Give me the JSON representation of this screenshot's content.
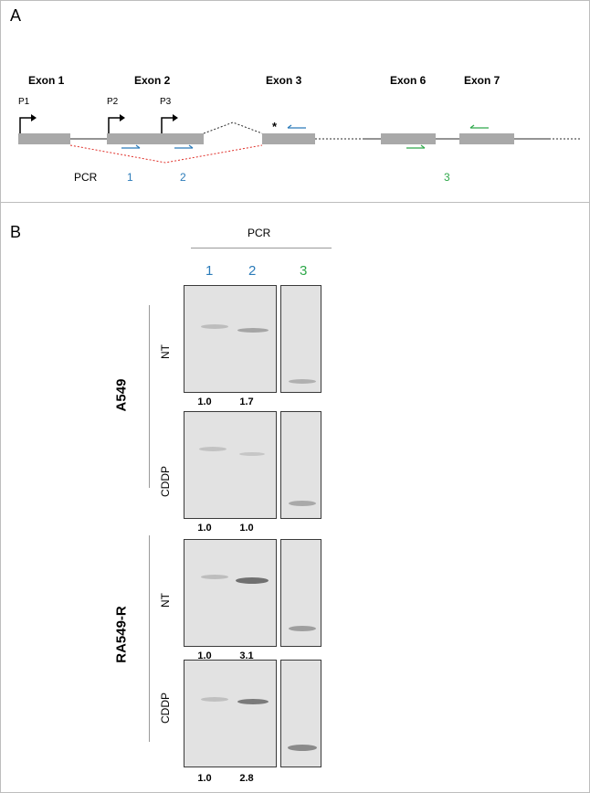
{
  "panel_a": {
    "letter": "A",
    "exons": [
      "Exon 1",
      "Exon 2",
      "Exon 3",
      "Exon 6",
      "Exon 7"
    ],
    "promoters": [
      "P1",
      "P2",
      "P3"
    ],
    "asterisk": "*",
    "pcr_label": "PCR",
    "pcr_numbers": [
      "1",
      "2",
      "3"
    ],
    "colors": {
      "pcr1": "#2b7bb9",
      "pcr2": "#2b7bb9",
      "pcr3": "#2ea84a",
      "exon": "#a9a9a9",
      "splice_red": "#e0302a"
    }
  },
  "panel_b": {
    "letter": "B",
    "pcr_header": "PCR",
    "columns": [
      "1",
      "2",
      "3"
    ],
    "cell_lines": [
      "A549",
      "RA549-R"
    ],
    "conditions": [
      "NT",
      "CDDP",
      "NT",
      "CDDP"
    ],
    "ratios": [
      [
        "1.0",
        "1.7"
      ],
      [
        "1.0",
        "1.0"
      ],
      [
        "1.0",
        "3.1"
      ],
      [
        "1.0",
        "2.8"
      ]
    ]
  }
}
